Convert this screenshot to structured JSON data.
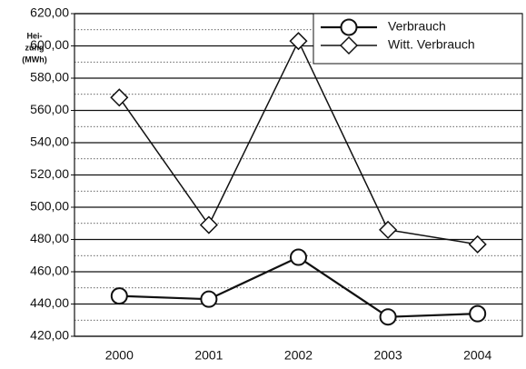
{
  "chart_data": {
    "type": "line",
    "y_label": [
      "Hei-",
      "zung",
      "(MWh)"
    ],
    "categories": [
      "2000",
      "2001",
      "2002",
      "2003",
      "2004"
    ],
    "series": [
      {
        "name": "Verbrauch",
        "color": "#111111",
        "marker": "circle",
        "values": [
          445,
          443,
          469,
          432,
          434
        ]
      },
      {
        "name": "Witt. Verbrauch",
        "color": "#111111",
        "marker": "diamond",
        "values": [
          568,
          489,
          603,
          486,
          477
        ]
      }
    ],
    "ylim": [
      420,
      620
    ],
    "yticks": [
      {
        "value": 420,
        "label": "420,00"
      },
      {
        "value": 440,
        "label": "440,00"
      },
      {
        "value": 460,
        "label": "460,00"
      },
      {
        "value": 480,
        "label": "480,00"
      },
      {
        "value": 500,
        "label": "500,00"
      },
      {
        "value": 520,
        "label": "520,00"
      },
      {
        "value": 540,
        "label": "540,00"
      },
      {
        "value": 560,
        "label": "560,00"
      },
      {
        "value": 580,
        "label": "580,00"
      },
      {
        "value": 600,
        "label": "600,00"
      },
      {
        "value": 620,
        "label": "620,00"
      }
    ],
    "grid": true,
    "legend": "top-right"
  }
}
